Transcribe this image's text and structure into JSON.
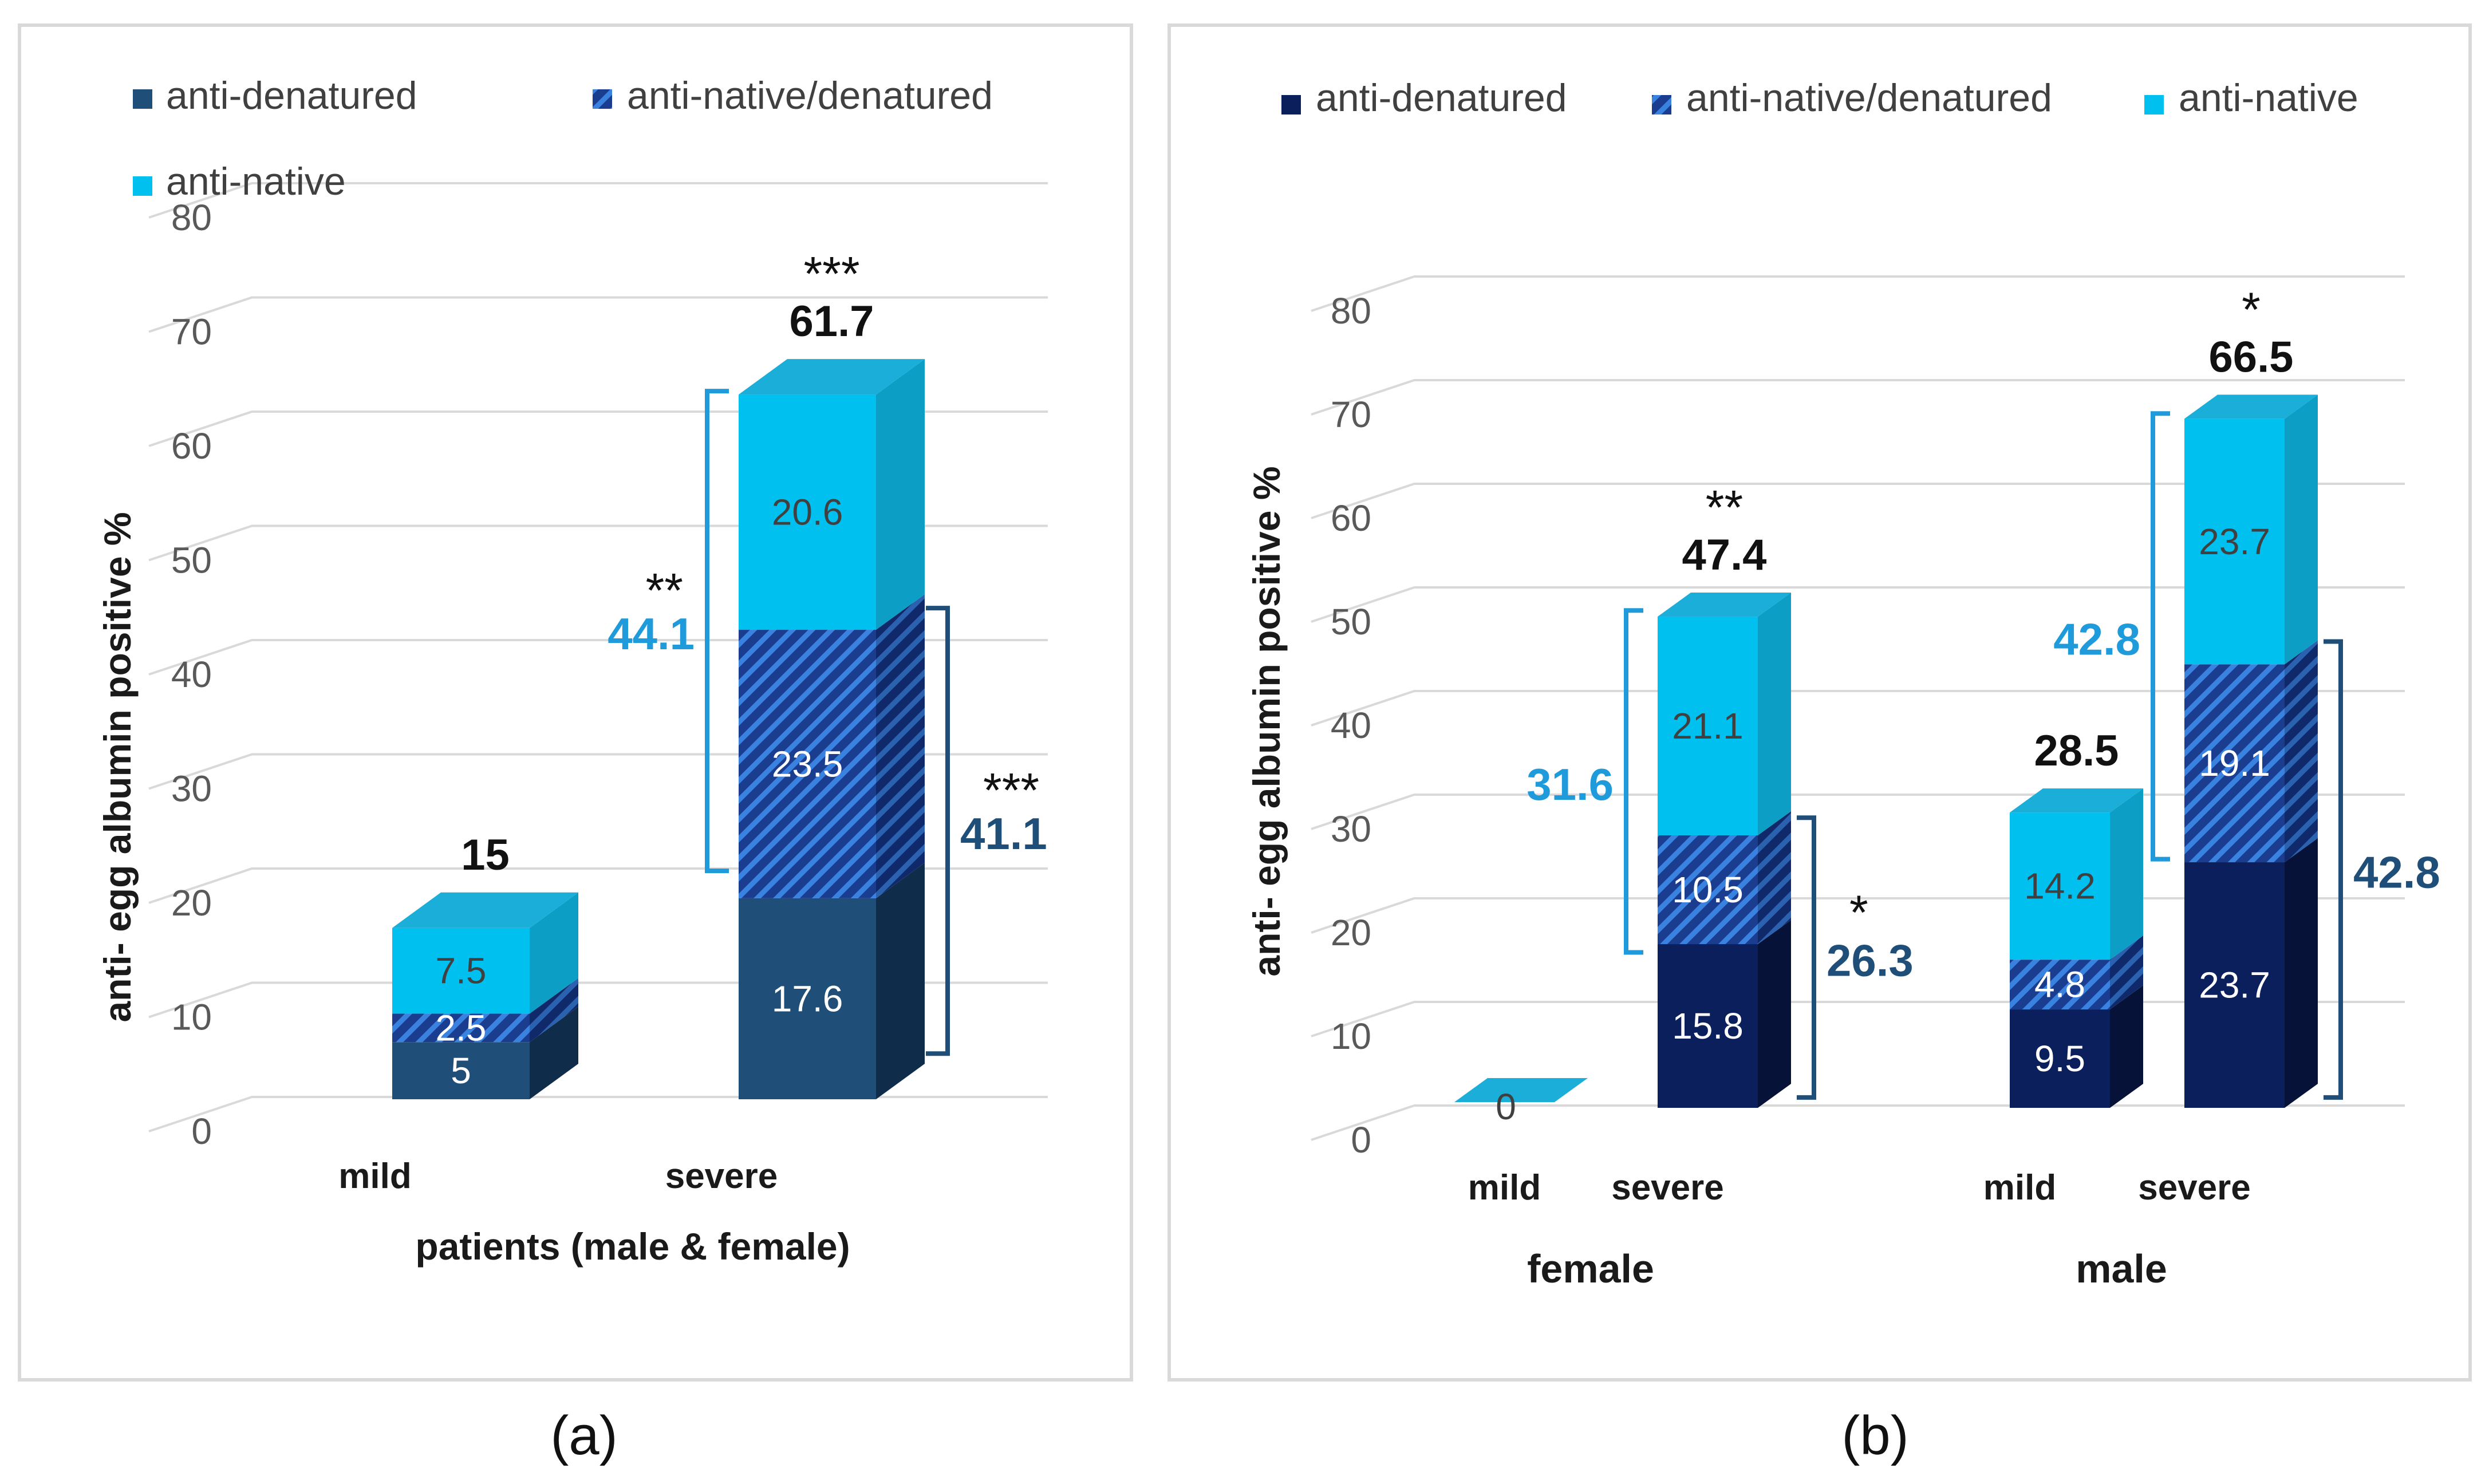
{
  "colors": {
    "anti_denatured_a": "#1f4e79",
    "anti_denatured_b": "#0b1f5c",
    "anti_native": "#00c0f0",
    "native_denatured_base": "#1a3d8f",
    "native_denatured_stripe": "#3a82e0",
    "bracket_light": "#1f9bdc",
    "bracket_dark": "#1f4e79",
    "grid": "#d9d9d9"
  },
  "series_names": [
    "anti-denatured",
    "anti-native/denatured",
    "anti-native"
  ],
  "chart_data": [
    {
      "id": "a",
      "type": "bar",
      "stacked": true,
      "style": "3d-column",
      "caption": "(a)",
      "ylabel": "anti- egg albumin positive %",
      "xlabel": "patients (male & female)",
      "ylim": [
        0,
        80
      ],
      "yticks": [
        "0",
        "10",
        "20",
        "30",
        "40",
        "50",
        "60",
        "70",
        "80"
      ],
      "legend": {
        "placement": "top-left",
        "items": [
          "anti-denatured",
          "anti-native/denatured",
          "anti-native"
        ]
      },
      "groups": [
        {
          "name": "",
          "categories": [
            {
              "label": "mild",
              "series": [
                {
                  "name": "anti-denatured",
                  "value": 5,
                  "label": "5"
                },
                {
                  "name": "anti-native/denatured",
                  "value": 2.5,
                  "label": "2.5"
                },
                {
                  "name": "anti-native",
                  "value": 7.5,
                  "label": "7.5"
                }
              ],
              "total": 15,
              "total_label": "15",
              "sig": ""
            },
            {
              "label": "severe",
              "series": [
                {
                  "name": "anti-denatured",
                  "value": 17.6,
                  "label": "17.6"
                },
                {
                  "name": "anti-native/denatured",
                  "value": 23.5,
                  "label": "23.5"
                },
                {
                  "name": "anti-native",
                  "value": 20.6,
                  "label": "20.6"
                }
              ],
              "total": 61.7,
              "total_label": "61.7",
              "sig": "***"
            }
          ]
        }
      ],
      "brackets": [
        {
          "category": 1,
          "side": "left",
          "from": 20,
          "to": 62,
          "value": "44.1",
          "sig": "**",
          "color": "light"
        },
        {
          "category": 1,
          "side": "right",
          "from": 4,
          "to": 43,
          "value": "41.1",
          "sig": "***",
          "color": "dark"
        }
      ]
    },
    {
      "id": "b",
      "type": "bar",
      "stacked": true,
      "style": "3d-column",
      "caption": "(b)",
      "ylabel": "anti- egg albumin positive %",
      "xlabel": "",
      "ylim": [
        0,
        80
      ],
      "yticks": [
        "0",
        "10",
        "20",
        "30",
        "40",
        "50",
        "60",
        "70",
        "80"
      ],
      "legend": {
        "placement": "top",
        "items": [
          "anti-denatured",
          "anti-native/denatured",
          "anti-native"
        ]
      },
      "groups": [
        {
          "name": "female",
          "categories": [
            {
              "label": "mild",
              "series": [
                {
                  "name": "anti-denatured",
                  "value": 0,
                  "label": ""
                },
                {
                  "name": "anti-native/denatured",
                  "value": 0,
                  "label": ""
                },
                {
                  "name": "anti-native",
                  "value": 0,
                  "label": "0"
                }
              ],
              "total": 0,
              "total_label": "",
              "sig": ""
            },
            {
              "label": "severe",
              "series": [
                {
                  "name": "anti-denatured",
                  "value": 15.8,
                  "label": "15.8"
                },
                {
                  "name": "anti-native/denatured",
                  "value": 10.5,
                  "label": "10.5"
                },
                {
                  "name": "anti-native",
                  "value": 21.1,
                  "label": "21.1"
                }
              ],
              "total": 47.4,
              "total_label": "47.4",
              "sig": "**"
            }
          ]
        },
        {
          "name": "male",
          "categories": [
            {
              "label": "mild",
              "series": [
                {
                  "name": "anti-denatured",
                  "value": 9.5,
                  "label": "9.5"
                },
                {
                  "name": "anti-native/denatured",
                  "value": 4.8,
                  "label": "4.8"
                },
                {
                  "name": "anti-native",
                  "value": 14.2,
                  "label": "14.2"
                }
              ],
              "total": 28.5,
              "total_label": "28.5",
              "sig": ""
            },
            {
              "label": "severe",
              "series": [
                {
                  "name": "anti-denatured",
                  "value": 23.7,
                  "label": "23.7"
                },
                {
                  "name": "anti-native/denatured",
                  "value": 19.1,
                  "label": "19.1"
                },
                {
                  "name": "anti-native",
                  "value": 23.7,
                  "label": "23.7"
                }
              ],
              "total": 66.5,
              "total_label": "66.5",
              "sig": "*"
            }
          ]
        }
      ],
      "brackets": [
        {
          "category": 1,
          "side": "left",
          "from": 15,
          "to": 48,
          "value": "31.6",
          "sig": "",
          "color": "light"
        },
        {
          "category": 1,
          "side": "right",
          "from": 1,
          "to": 28,
          "value": "26.3",
          "sig": "*",
          "color": "dark"
        },
        {
          "category": 3,
          "side": "left",
          "from": 24,
          "to": 67,
          "value": "42.8",
          "sig": "",
          "color": "light"
        },
        {
          "category": 3,
          "side": "right",
          "from": 1,
          "to": 45,
          "value": "42.8",
          "sig": "",
          "color": "dark"
        }
      ]
    }
  ]
}
